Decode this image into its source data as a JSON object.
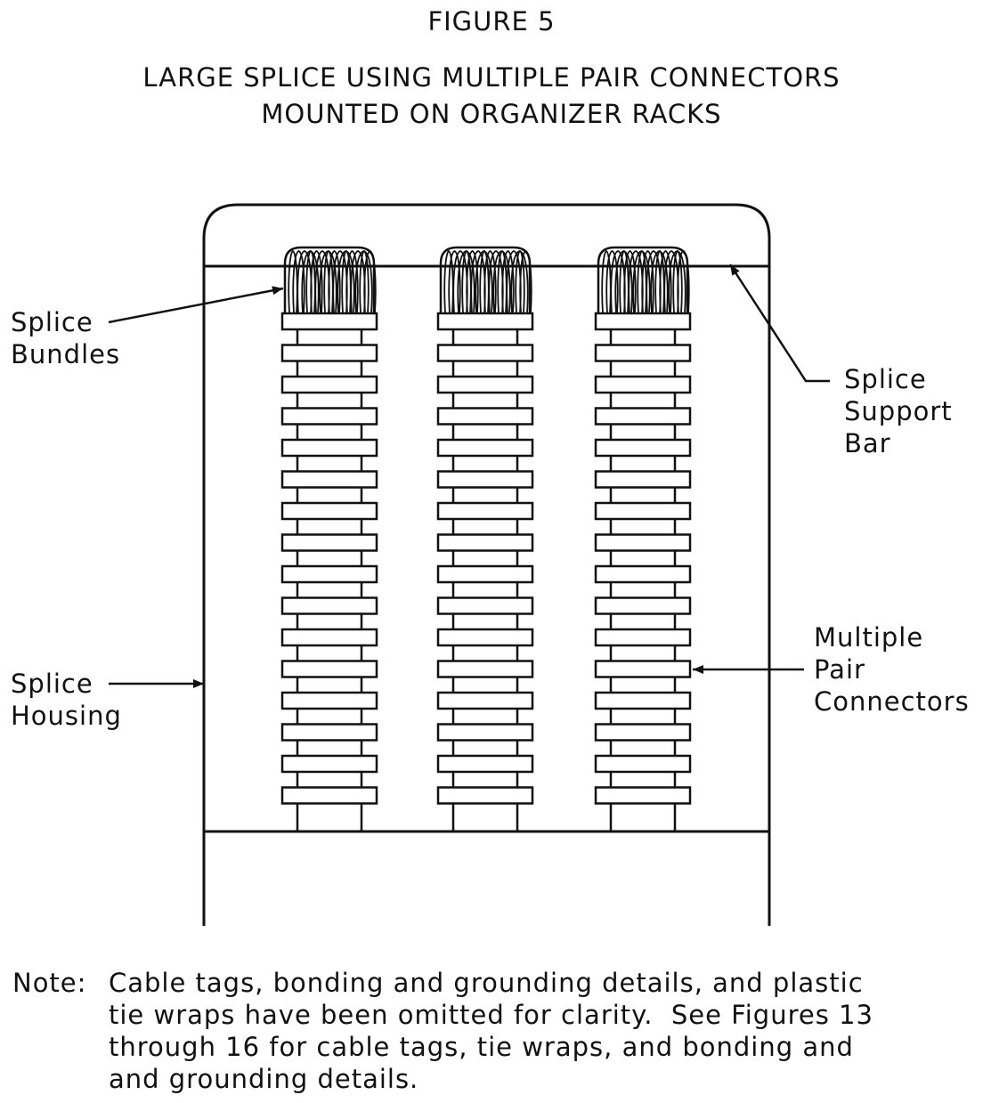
{
  "figure": {
    "number": "FIGURE 5",
    "title_line1": "LARGE SPLICE USING MULTIPLE PAIR CONNECTORS",
    "title_line2": "MOUNTED ON ORGANIZER RACKS"
  },
  "labels": {
    "splice_bundles": [
      "Splice",
      "Bundles"
    ],
    "splice_support_bar": [
      "Splice",
      "Support",
      "Bar"
    ],
    "multiple_pair_connectors": [
      "Multiple",
      "Pair",
      "Connectors"
    ],
    "splice_housing": [
      "Splice",
      "Housing"
    ]
  },
  "note": {
    "prefix": "Note:",
    "lines": [
      "Cable tags, bonding and grounding details, and plastic",
      "tie wraps have been omitted for clarity.  See Figures 13",
      "through 16 for cable tags, tie wraps, and bonding and",
      "and grounding details."
    ]
  },
  "diagram": {
    "rack_count": 3,
    "connectors_per_rack": 16
  }
}
